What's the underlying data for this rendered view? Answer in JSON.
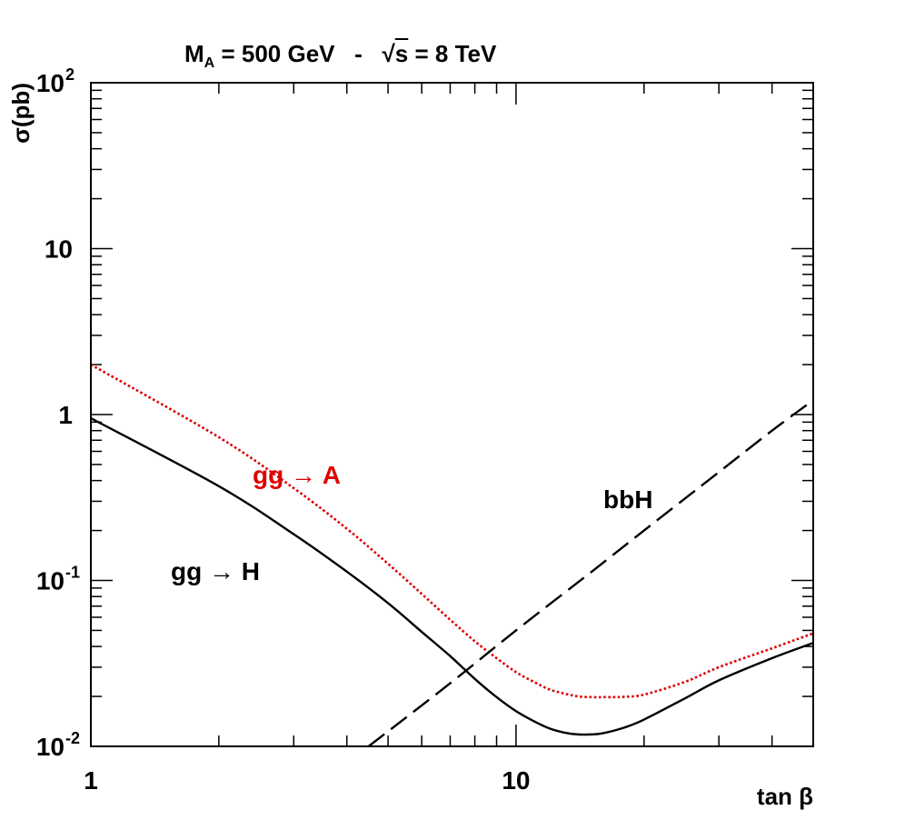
{
  "chart_data": {
    "type": "line",
    "title": {
      "mass_symbol": "M",
      "mass_subscript": "A",
      "mass_value": " = 500 GeV",
      "separator": "-",
      "energy_symbol": "s",
      "energy_value": " = 8 TeV"
    },
    "xlabel": "tan β",
    "ylabel": "σ(pb)",
    "xscale": "log",
    "yscale": "log",
    "xlim": [
      1,
      50
    ],
    "ylim": [
      0.01,
      100
    ],
    "xticks": [
      {
        "value": 1,
        "label": "1"
      },
      {
        "value": 10,
        "label": "10"
      }
    ],
    "yticks": [
      {
        "value": 0.01,
        "base": "10",
        "exp": "-2"
      },
      {
        "value": 0.1,
        "base": "10",
        "exp": "-1"
      },
      {
        "value": 1,
        "base": "1",
        "exp": ""
      },
      {
        "value": 10,
        "base": "10",
        "exp": ""
      },
      {
        "value": 100,
        "base": "10",
        "exp": "2"
      }
    ],
    "series": [
      {
        "name": "gg → H",
        "label": "gg → H",
        "color": "#000000",
        "style": "solid",
        "x": [
          1,
          2,
          3,
          4,
          5,
          6,
          7,
          8,
          9,
          10,
          11,
          12,
          13,
          14,
          15,
          16,
          18,
          20,
          25,
          30,
          40,
          50
        ],
        "y": [
          0.95,
          0.37,
          0.19,
          0.113,
          0.073,
          0.049,
          0.035,
          0.0255,
          0.0198,
          0.0163,
          0.0142,
          0.0128,
          0.0121,
          0.0118,
          0.0118,
          0.012,
          0.013,
          0.0145,
          0.0195,
          0.025,
          0.034,
          0.042
        ]
      },
      {
        "name": "gg → A",
        "label": "gg → A",
        "color": "#dd0000",
        "style": "dotted",
        "x": [
          1,
          2,
          3,
          4,
          5,
          6,
          7,
          8,
          9,
          10,
          11,
          12,
          13,
          14,
          15,
          16,
          17,
          18,
          20,
          25,
          30,
          40,
          50
        ],
        "y": [
          2.0,
          0.73,
          0.36,
          0.205,
          0.126,
          0.083,
          0.058,
          0.043,
          0.034,
          0.028,
          0.0245,
          0.022,
          0.0208,
          0.02,
          0.0198,
          0.0198,
          0.0198,
          0.0199,
          0.0205,
          0.0245,
          0.03,
          0.039,
          0.048
        ]
      },
      {
        "name": "bbH",
        "label": "bbH",
        "color": "#000000",
        "style": "dashed",
        "x": [
          4.5,
          7,
          10,
          15,
          20,
          30,
          40,
          50
        ],
        "y": [
          0.01,
          0.024,
          0.05,
          0.112,
          0.2,
          0.45,
          0.8,
          1.22
        ]
      }
    ]
  }
}
